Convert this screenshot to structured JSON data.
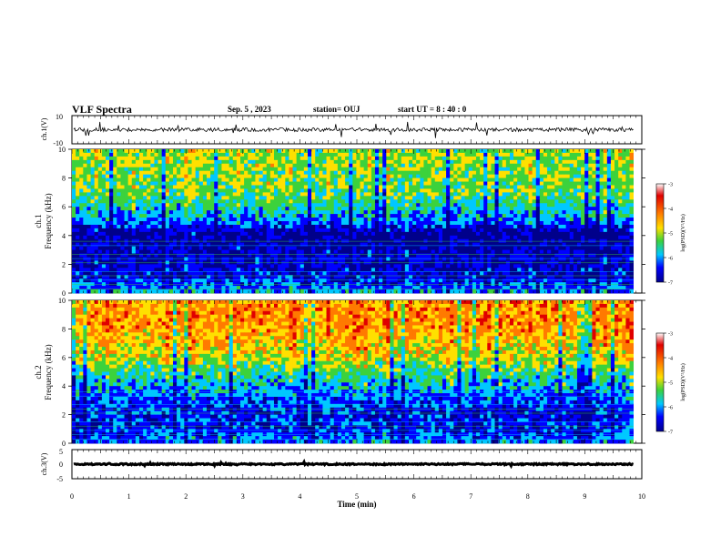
{
  "header": {
    "title": "VLF Spectra",
    "date": "Sep. 5 , 2023",
    "station": "station= OUJ",
    "start": "start  UT =  8 : 40 : 0"
  },
  "colorbar": {
    "label": "log(PSD)(V²/Hz)",
    "ticks": [
      "-3",
      "-4",
      "-5",
      "-6",
      "-7"
    ],
    "colors": [
      "#e00000",
      "#ff7a00",
      "#ffe000",
      "#3cd23c",
      "#00c8ff",
      "#0000ff",
      "#00008b"
    ]
  },
  "chart_data": [
    {
      "type": "line",
      "name_label": "ch.1(V)",
      "ylim": [
        -10,
        10
      ],
      "yticks": [
        "10",
        "-10"
      ],
      "baseline": 0,
      "xlim": [
        0,
        10
      ],
      "note": ""
    },
    {
      "type": "heatmap",
      "ylabel": "ch.1\nFrequency (kHz)",
      "ylabel_ch": "ch.1",
      "ylabel_freq": "Frequency (kHz)",
      "xlim": [
        0,
        9.85
      ],
      "ylim": [
        0,
        10
      ],
      "yticks": [
        "0",
        "2",
        "4",
        "6",
        "8",
        "10"
      ],
      "zlim": [
        -7,
        -3
      ],
      "band_profile": {
        "freq_khz": [
          0,
          1,
          2,
          3,
          4,
          4.5,
          5,
          6,
          7,
          8,
          9,
          10
        ],
        "log_psd": [
          -5.6,
          -6.3,
          -6.4,
          -6.5,
          -6.7,
          -6.4,
          -5.8,
          -5.4,
          -5.0,
          -4.9,
          -4.8,
          -4.8
        ]
      }
    },
    {
      "type": "heatmap",
      "ylabel_ch": "ch.2",
      "ylabel_freq": "Frequency (kHz)",
      "xlim": [
        0,
        9.85
      ],
      "ylim": [
        0,
        10
      ],
      "yticks": [
        "0",
        "2",
        "4",
        "6",
        "8",
        "10"
      ],
      "zlim": [
        -7,
        -3
      ],
      "band_profile": {
        "freq_khz": [
          0,
          1,
          2,
          3,
          4,
          5,
          6,
          7,
          8,
          9,
          10
        ],
        "log_psd": [
          -5.8,
          -6.2,
          -6.2,
          -6.0,
          -5.6,
          -5.2,
          -4.6,
          -4.3,
          -4.1,
          -4.0,
          -4.0
        ]
      }
    },
    {
      "type": "line",
      "name_label": "ch.3(V)",
      "ylim": [
        -5,
        5
      ],
      "yticks": [
        "5",
        "0",
        "-5"
      ],
      "baseline": 0,
      "xlim": [
        0,
        10
      ]
    }
  ],
  "xaxis": {
    "label": "Time (min)",
    "ticks": [
      "0",
      "1",
      "2",
      "3",
      "4",
      "5",
      "6",
      "7",
      "8",
      "9",
      "10"
    ],
    "range": [
      0,
      10
    ]
  }
}
